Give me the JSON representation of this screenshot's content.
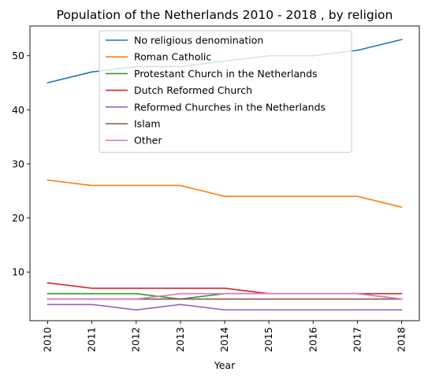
{
  "chart_data": {
    "type": "line",
    "title": "Population of the Netherlands 2010 - 2018 , by religion",
    "xlabel": "Year",
    "ylabel": "",
    "x": [
      2010,
      2011,
      2012,
      2013,
      2014,
      2015,
      2016,
      2017,
      2018
    ],
    "xlim": [
      2009.6,
      2018.4
    ],
    "ylim": [
      1,
      55.5
    ],
    "yticks": [
      10,
      20,
      30,
      40,
      50
    ],
    "grid": false,
    "legend_position": "top-center",
    "series": [
      {
        "name": "No religious denomination",
        "color": "#1f77b4",
        "values": [
          45,
          47,
          48,
          48,
          49,
          50,
          50,
          51,
          53
        ]
      },
      {
        "name": "Roman Catholic",
        "color": "#ff7f0e",
        "values": [
          27,
          26,
          26,
          26,
          24,
          24,
          24,
          24,
          22
        ]
      },
      {
        "name": "Protestant Church in the Netherlands",
        "color": "#2ca02c",
        "values": [
          6,
          6,
          6,
          5,
          6,
          6,
          6,
          6,
          5
        ]
      },
      {
        "name": "Dutch Reformed Church",
        "color": "#d62728",
        "values": [
          8,
          7,
          7,
          7,
          7,
          6,
          6,
          6,
          6
        ]
      },
      {
        "name": "Reformed Churches in the Netherlands",
        "color": "#9467bd",
        "values": [
          4,
          4,
          3,
          4,
          3,
          3,
          3,
          3,
          3
        ]
      },
      {
        "name": "Islam",
        "color": "#8c564b",
        "values": [
          5,
          5,
          5,
          5,
          5,
          5,
          5,
          5,
          5
        ]
      },
      {
        "name": "Other",
        "color": "#e377c2",
        "values": [
          5,
          5,
          5,
          6,
          6,
          6,
          6,
          6,
          5
        ]
      }
    ]
  }
}
